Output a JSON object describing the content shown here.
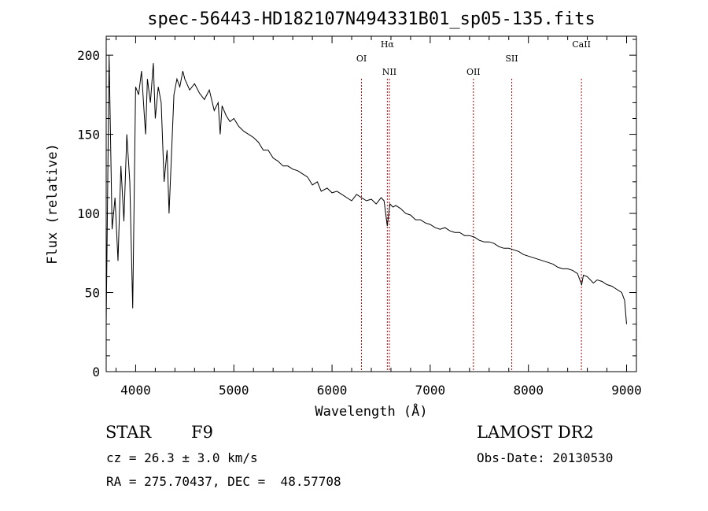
{
  "chart_data": {
    "type": "line",
    "title": "spec-56443-HD182107N494331B01_sp05-135.fits",
    "xlabel": "Wavelength (Å)",
    "ylabel": "Flux (relative)",
    "xlim": [
      3700,
      9100
    ],
    "ylim": [
      0,
      212
    ],
    "x_ticks": [
      4000,
      5000,
      6000,
      7000,
      8000,
      9000
    ],
    "y_ticks": [
      0,
      50,
      100,
      150,
      200
    ],
    "grid": false,
    "series": [
      {
        "x": [
          3700,
          3730,
          3760,
          3790,
          3820,
          3850,
          3880,
          3910,
          3940,
          3970,
          4000,
          4030,
          4060,
          4090,
          4101,
          4120,
          4150,
          4180,
          4200,
          4230,
          4260,
          4290,
          4320,
          4340,
          4360,
          4390,
          4420,
          4450,
          4480,
          4500,
          4550,
          4600,
          4650,
          4700,
          4750,
          4800,
          4840,
          4861,
          4880,
          4920,
          4960,
          5000,
          5050,
          5100,
          5150,
          5200,
          5250,
          5300,
          5350,
          5400,
          5450,
          5500,
          5550,
          5600,
          5650,
          5700,
          5750,
          5800,
          5850,
          5890,
          5950,
          6000,
          6050,
          6100,
          6150,
          6200,
          6250,
          6300,
          6350,
          6400,
          6450,
          6500,
          6530,
          6563,
          6590,
          6620,
          6650,
          6700,
          6750,
          6800,
          6850,
          6900,
          6950,
          7000,
          7050,
          7100,
          7150,
          7200,
          7250,
          7300,
          7350,
          7400,
          7450,
          7500,
          7550,
          7600,
          7650,
          7700,
          7750,
          7800,
          7850,
          7900,
          7950,
          8000,
          8050,
          8100,
          8150,
          8200,
          8250,
          8300,
          8350,
          8400,
          8450,
          8500,
          8542,
          8560,
          8600,
          8662,
          8700,
          8750,
          8800,
          8850,
          8900,
          8950,
          8980,
          9000
        ],
        "y": [
          30,
          200,
          90,
          110,
          70,
          130,
          95,
          150,
          120,
          40,
          180,
          175,
          190,
          160,
          150,
          185,
          170,
          195,
          160,
          180,
          170,
          120,
          140,
          100,
          130,
          175,
          185,
          180,
          190,
          185,
          178,
          182,
          176,
          172,
          178,
          165,
          170,
          150,
          168,
          162,
          158,
          160,
          155,
          152,
          150,
          148,
          145,
          140,
          140,
          135,
          133,
          130,
          130,
          128,
          127,
          125,
          123,
          118,
          120,
          114,
          116,
          113,
          114,
          112,
          110,
          108,
          112,
          110,
          108,
          109,
          106,
          110,
          108,
          92,
          106,
          104,
          105,
          103,
          100,
          99,
          96,
          96,
          94,
          93,
          91,
          90,
          91,
          89,
          88,
          88,
          86,
          86,
          85,
          83,
          82,
          82,
          81,
          79,
          78,
          78,
          77,
          76,
          74,
          73,
          72,
          71,
          70,
          69,
          68,
          66,
          65,
          65,
          64,
          62,
          55,
          61,
          60,
          56,
          58,
          57,
          55,
          54,
          52,
          50,
          45,
          30
        ]
      }
    ],
    "line_markers": [
      {
        "label": "OI",
        "x": 6300,
        "label_row": "low"
      },
      {
        "label": "Hα",
        "x": 6563,
        "label_row": "high"
      },
      {
        "label": "NII",
        "x": 6584,
        "label_row": "lower"
      },
      {
        "label": "OII",
        "x": 7440,
        "label_row": "lower"
      },
      {
        "label": "SII",
        "x": 7830,
        "label_row": "low"
      },
      {
        "label": "CaII",
        "x": 8540,
        "label_row": "high"
      }
    ],
    "marker_color": "#c00000"
  },
  "info": {
    "object_type": "STAR",
    "subclass": "F9",
    "survey": "LAMOST DR2",
    "cz": "cz = 26.3 ± 3.0 km/s",
    "obs_date": "Obs-Date: 20130530",
    "coords": "RA = 275.70437, DEC =  48.57708"
  }
}
